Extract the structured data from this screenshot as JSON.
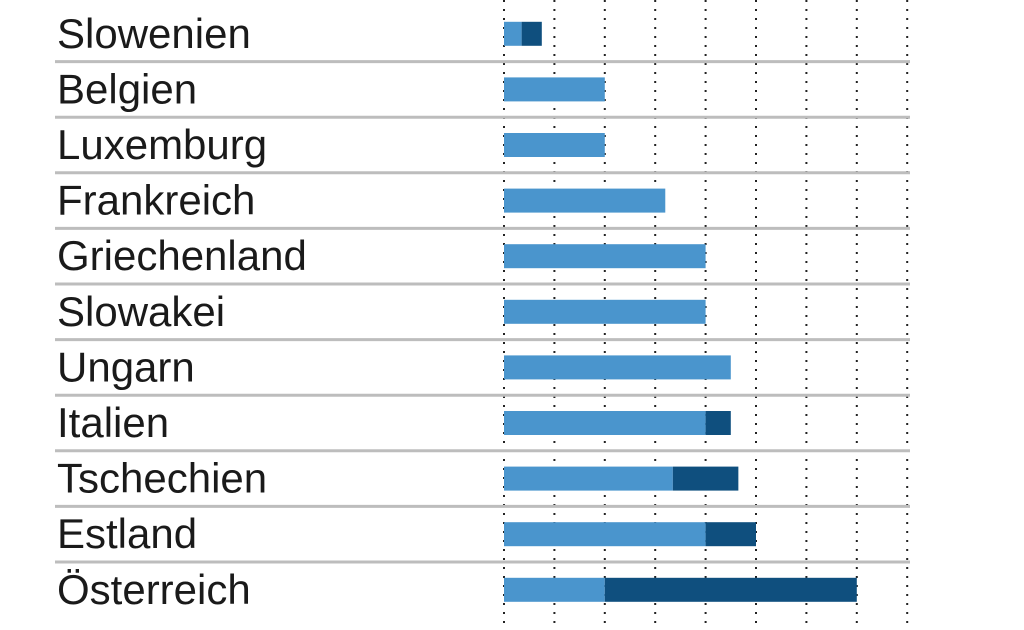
{
  "chart_data": {
    "type": "bar",
    "orientation": "horizontal",
    "stacked": true,
    "title": "",
    "xlabel": "",
    "ylabel": "",
    "categories": [
      "Slowenien",
      "Belgien",
      "Luxemburg",
      "Frankreich",
      "Griechenland",
      "Slowakei",
      "Ungarn",
      "Italien",
      "Tschechien",
      "Estland",
      "Österreich"
    ],
    "series": [
      {
        "color": "#4a95cd",
        "values": [
          0.35,
          2.0,
          2.0,
          3.2,
          4.0,
          4.0,
          4.5,
          4.0,
          3.35,
          4.0,
          2.0
        ]
      },
      {
        "color": "#0f4f7e",
        "values": [
          0.4,
          0,
          0,
          0,
          0,
          0,
          0,
          0.5,
          1.3,
          1.0,
          5.0
        ]
      }
    ],
    "xlim": [
      0,
      8
    ],
    "grid": true,
    "grid_style": "dotted-vertical",
    "legend": "none"
  }
}
